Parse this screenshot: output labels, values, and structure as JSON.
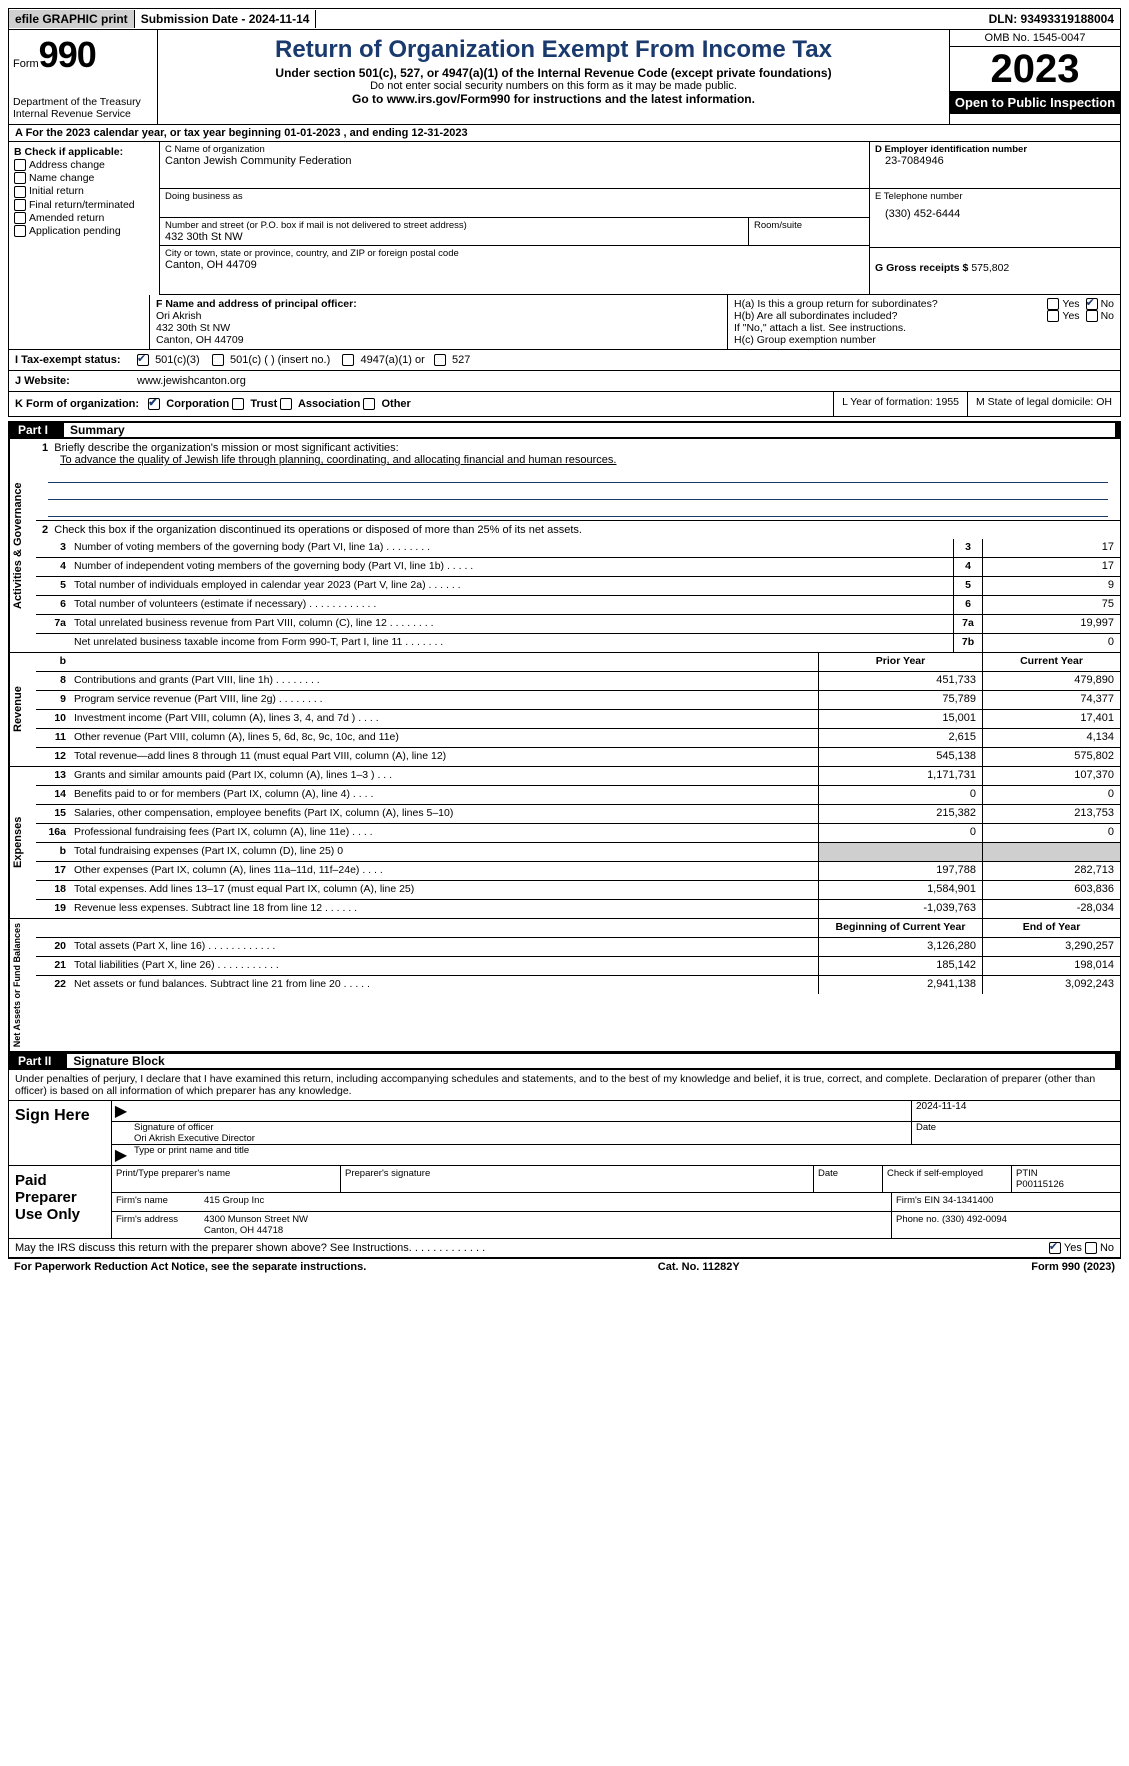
{
  "topbar": {
    "efile": "efile GRAPHIC print",
    "submission": "Submission Date - 2024-11-14",
    "dln": "DLN: 93493319188004"
  },
  "header": {
    "form_label": "Form",
    "form_num": "990",
    "dept": "Department of the Treasury\nInternal Revenue Service",
    "title": "Return of Organization Exempt From Income Tax",
    "subtitle": "Under section 501(c), 527, or 4947(a)(1) of the Internal Revenue Code (except private foundations)",
    "ssn_note": "Do not enter social security numbers on this form as it may be made public.",
    "goto": "Go to www.irs.gov/Form990 for instructions and the latest information.",
    "omb": "OMB No. 1545-0047",
    "year": "2023",
    "open": "Open to Public Inspection"
  },
  "line_a": "A For the 2023 calendar year, or tax year beginning 01-01-2023    , and ending 12-31-2023",
  "col_b": {
    "hdr": "B Check if applicable:",
    "items": [
      "Address change",
      "Name change",
      "Initial return",
      "Final return/terminated",
      "Amended return",
      "Application pending"
    ]
  },
  "col_c": {
    "name_lbl": "C Name of organization",
    "name": "Canton Jewish Community Federation",
    "dba_lbl": "Doing business as",
    "dba": "",
    "street_lbl": "Number and street (or P.O. box if mail is not delivered to street address)",
    "street": "432 30th St NW",
    "room_lbl": "Room/suite",
    "city_lbl": "City or town, state or province, country, and ZIP or foreign postal code",
    "city": "Canton, OH  44709"
  },
  "col_d": {
    "lbl": "D Employer identification number",
    "val": "23-7084946"
  },
  "col_e": {
    "lbl": "E Telephone number",
    "val": "(330) 452-6444"
  },
  "col_g": {
    "lbl": "G Gross receipts $",
    "val": "575,802"
  },
  "col_f": {
    "lbl": "F  Name and address of principal officer:",
    "name": "Ori Akrish",
    "addr1": "432 30th St NW",
    "addr2": "Canton, OH  44709"
  },
  "col_h": {
    "ha": "H(a)  Is this a group return for subordinates?",
    "hb": "H(b)  Are all subordinates included?",
    "hb_note": "If \"No,\" attach a list. See instructions.",
    "hc": "H(c)  Group exemption number",
    "yes": "Yes",
    "no": "No"
  },
  "tes": {
    "lbl": "I   Tax-exempt status:",
    "opts": [
      "501(c)(3)",
      "501(c) (  ) (insert no.)",
      "4947(a)(1) or",
      "527"
    ]
  },
  "website": {
    "lbl": "J   Website:",
    "val": "www.jewishcanton.org"
  },
  "line_k": {
    "lbl": "K Form of organization:",
    "opts": [
      "Corporation",
      "Trust",
      "Association",
      "Other"
    ],
    "l": "L Year of formation: 1955",
    "m": "M State of legal domicile: OH"
  },
  "part1": {
    "num": "Part I",
    "title": "Summary"
  },
  "summary": {
    "gov_label": "Activities & Governance",
    "rev_label": "Revenue",
    "exp_label": "Expenses",
    "nab_label": "Net Assets or Fund Balances",
    "line1_lbl": "Briefly describe the organization's mission or most significant activities:",
    "line1_val": "To advance the quality of Jewish life through planning, coordinating, and allocating financial and human resources.",
    "line2": "Check this box      if the organization discontinued its operations or disposed of more than 25% of its net assets.",
    "rows_gov": [
      {
        "n": "3",
        "d": "Number of voting members of the governing body (Part VI, line 1a)   .    .    .    .    .    .    .    .",
        "c": "3",
        "v": "17"
      },
      {
        "n": "4",
        "d": "Number of independent voting members of the governing body (Part VI, line 1b)   .    .    .    .    .",
        "c": "4",
        "v": "17"
      },
      {
        "n": "5",
        "d": "Total number of individuals employed in calendar year 2023 (Part V, line 2a)   .    .    .    .    .    .",
        "c": "5",
        "v": "9"
      },
      {
        "n": "6",
        "d": "Total number of volunteers (estimate if necessary)   .    .    .    .    .    .    .    .    .    .    .    .",
        "c": "6",
        "v": "75"
      },
      {
        "n": "7a",
        "d": "Total unrelated business revenue from Part VIII, column (C), line 12   .    .    .    .    .    .    .    .",
        "c": "7a",
        "v": "19,997"
      },
      {
        "n": "",
        "d": "Net unrelated business taxable income from Form 990-T, Part I, line 11   .    .    .    .    .    .    .",
        "c": "7b",
        "v": "0"
      }
    ],
    "hdr_prior": "Prior Year",
    "hdr_current": "Current Year",
    "rows_rev": [
      {
        "n": "8",
        "d": "Contributions and grants (Part VIII, line 1h)   .    .    .    .    .    .    .    .",
        "p": "451,733",
        "c": "479,890"
      },
      {
        "n": "9",
        "d": "Program service revenue (Part VIII, line 2g)   .    .    .    .    .    .    .    .",
        "p": "75,789",
        "c": "74,377"
      },
      {
        "n": "10",
        "d": "Investment income (Part VIII, column (A), lines 3, 4, and 7d )   .    .    .    .",
        "p": "15,001",
        "c": "17,401"
      },
      {
        "n": "11",
        "d": "Other revenue (Part VIII, column (A), lines 5, 6d, 8c, 9c, 10c, and 11e)",
        "p": "2,615",
        "c": "4,134"
      },
      {
        "n": "12",
        "d": "Total revenue—add lines 8 through 11 (must equal Part VIII, column (A), line 12)",
        "p": "545,138",
        "c": "575,802"
      }
    ],
    "rows_exp": [
      {
        "n": "13",
        "d": "Grants and similar amounts paid (Part IX, column (A), lines 1–3 )   .    .    .",
        "p": "1,171,731",
        "c": "107,370"
      },
      {
        "n": "14",
        "d": "Benefits paid to or for members (Part IX, column (A), line 4)   .    .    .    .",
        "p": "0",
        "c": "0"
      },
      {
        "n": "15",
        "d": "Salaries, other compensation, employee benefits (Part IX, column (A), lines 5–10)",
        "p": "215,382",
        "c": "213,753"
      },
      {
        "n": "16a",
        "d": "Professional fundraising fees (Part IX, column (A), line 11e)   .    .    .    .",
        "p": "0",
        "c": "0"
      },
      {
        "n": "b",
        "d": "Total fundraising expenses (Part IX, column (D), line 25) 0",
        "p": "",
        "c": "",
        "shaded": true
      },
      {
        "n": "17",
        "d": "Other expenses (Part IX, column (A), lines 11a–11d, 11f–24e)   .    .    .    .",
        "p": "197,788",
        "c": "282,713"
      },
      {
        "n": "18",
        "d": "Total expenses. Add lines 13–17 (must equal Part IX, column (A), line 25)",
        "p": "1,584,901",
        "c": "603,836"
      },
      {
        "n": "19",
        "d": "Revenue less expenses. Subtract line 18 from line 12   .    .    .    .    .    .",
        "p": "-1,039,763",
        "c": "-28,034"
      }
    ],
    "hdr_beg": "Beginning of Current Year",
    "hdr_end": "End of Year",
    "rows_nab": [
      {
        "n": "20",
        "d": "Total assets (Part X, line 16)   .    .    .    .    .    .    .    .    .    .    .    .",
        "p": "3,126,280",
        "c": "3,290,257"
      },
      {
        "n": "21",
        "d": "Total liabilities (Part X, line 26)   .    .    .    .    .    .    .    .    .    .    .",
        "p": "185,142",
        "c": "198,014"
      },
      {
        "n": "22",
        "d": "Net assets or fund balances. Subtract line 21 from line 20   .    .    .    .    .",
        "p": "2,941,138",
        "c": "3,092,243"
      }
    ]
  },
  "part2": {
    "num": "Part II",
    "title": "Signature Block"
  },
  "sig": {
    "declare": "Under penalties of perjury, I declare that I have examined this return, including accompanying schedules and statements, and to the best of my knowledge and belief, it is true, correct, and complete. Declaration of preparer (other than officer) is based on all information of which preparer has any knowledge.",
    "sign_here": "Sign Here",
    "sig_officer_lbl": "Signature of officer",
    "sig_officer": "Ori Akrish  Executive Director",
    "sig_date_lbl": "Date",
    "sig_date": "2024-11-14",
    "type_name_lbl": "Type or print name and title",
    "paid_lbl": "Paid Preparer Use Only",
    "prep_name_lbl": "Print/Type preparer's name",
    "prep_sig_lbl": "Preparer's signature",
    "date_lbl": "Date",
    "self_emp": "Check      if self-employed",
    "ptin_lbl": "PTIN",
    "ptin": "P00115126",
    "firm_name_lbl": "Firm's name",
    "firm_name": "415 Group Inc",
    "firm_ein_lbl": "Firm's EIN",
    "firm_ein": "34-1341400",
    "firm_addr_lbl": "Firm's address",
    "firm_addr1": "4300 Munson Street NW",
    "firm_addr2": "Canton, OH  44718",
    "phone_lbl": "Phone no.",
    "phone": "(330) 492-0094",
    "discuss": "May the IRS discuss this return with the preparer shown above? See Instructions.   .    .    .    .    .    .    .    .    .    .    .    ."
  },
  "footer": {
    "left": "For Paperwork Reduction Act Notice, see the separate instructions.",
    "center": "Cat. No. 11282Y",
    "right": "Form 990 (2023)"
  }
}
